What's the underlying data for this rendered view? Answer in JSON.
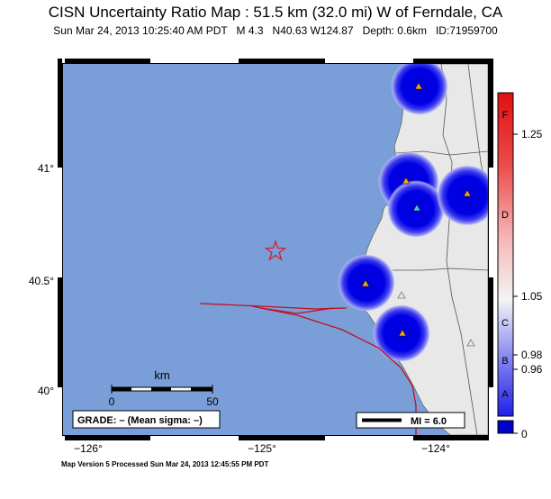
{
  "title": "CISN Uncertainty Ratio Map : 51.5 km (32.0 mi) W of Ferndale, CA",
  "subtitle": "Sun Mar 24, 2013 10:25:40 AM PDT   M 4.3   N40.63 W124.87   Depth: 0.6km   ID:71959700",
  "footer": "Map Version 5 Processed Sun Mar 24, 2013 12:45:55 PM PDT",
  "lat_labels": [
    "41°",
    "40.5°",
    "40°"
  ],
  "lon_labels": [
    "−126°",
    "−125°",
    "−124°"
  ],
  "scale_bar": {
    "unit": "km",
    "left": "0",
    "right": "50"
  },
  "grade": "GRADE: – (Mean sigma: –)",
  "mi_legend": "MI = 6.0",
  "colorbar": {
    "letters": [
      "F",
      "D",
      "C",
      "B",
      "A"
    ],
    "values": [
      "1.25",
      "1.05",
      "0.98",
      "0.96",
      "0"
    ]
  },
  "colors": {
    "ocean": "#7a9fd8",
    "land": "#e8e8e8",
    "circle": "#0000e6",
    "fault": "#c01020",
    "epicenter": "#d81e2c"
  }
}
